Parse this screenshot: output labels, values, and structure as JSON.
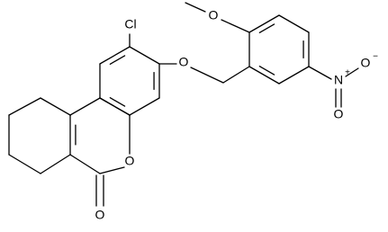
{
  "nodes": [
    {
      "label": "Cl"
    },
    {
      "label": "O"
    },
    {
      "label": "O"
    },
    {
      "label": "N",
      "charge": "+"
    },
    {
      "label": "O",
      "charge": "−"
    },
    {
      "label": "O"
    },
    {
      "label": "O"
    },
    {
      "label": "O"
    }
  ]
}
